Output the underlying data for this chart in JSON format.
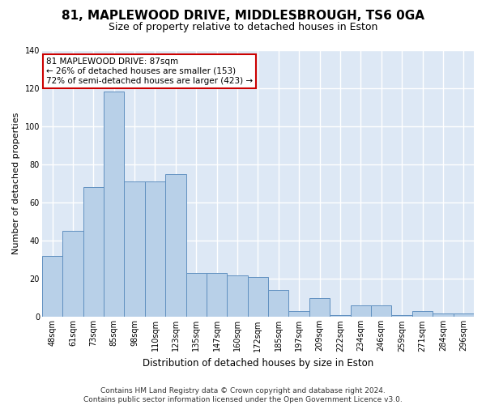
{
  "title": "81, MAPLEWOOD DRIVE, MIDDLESBROUGH, TS6 0GA",
  "subtitle": "Size of property relative to detached houses in Eston",
  "xlabel": "Distribution of detached houses by size in Eston",
  "ylabel": "Number of detached properties",
  "footer_line1": "Contains HM Land Registry data © Crown copyright and database right 2024.",
  "footer_line2": "Contains public sector information licensed under the Open Government Licence v3.0.",
  "annotation_line1": "81 MAPLEWOOD DRIVE: 87sqm",
  "annotation_line2": "← 26% of detached houses are smaller (153)",
  "annotation_line3": "72% of semi-detached houses are larger (423) →",
  "categories": [
    "48sqm",
    "61sqm",
    "73sqm",
    "85sqm",
    "98sqm",
    "110sqm",
    "123sqm",
    "135sqm",
    "147sqm",
    "160sqm",
    "172sqm",
    "185sqm",
    "197sqm",
    "209sqm",
    "222sqm",
    "234sqm",
    "246sqm",
    "259sqm",
    "271sqm",
    "284sqm",
    "296sqm"
  ],
  "values": [
    32,
    45,
    68,
    118,
    71,
    71,
    75,
    23,
    23,
    22,
    21,
    14,
    3,
    10,
    1,
    6,
    6,
    1,
    3,
    2,
    2
  ],
  "bar_color": "#b8d0e8",
  "bar_edge_color": "#6090c0",
  "bg_color": "#ffffff",
  "plot_bg_color": "#dde8f5",
  "grid_color": "#ffffff",
  "annotation_box_color": "#ffffff",
  "annotation_box_edge": "#cc0000",
  "ylim": [
    0,
    140
  ],
  "yticks": [
    0,
    20,
    40,
    60,
    80,
    100,
    120,
    140
  ],
  "title_fontsize": 11,
  "subtitle_fontsize": 9,
  "ylabel_fontsize": 8,
  "xlabel_fontsize": 8.5,
  "tick_fontsize": 7,
  "annotation_fontsize": 7.5,
  "footer_fontsize": 6.5
}
